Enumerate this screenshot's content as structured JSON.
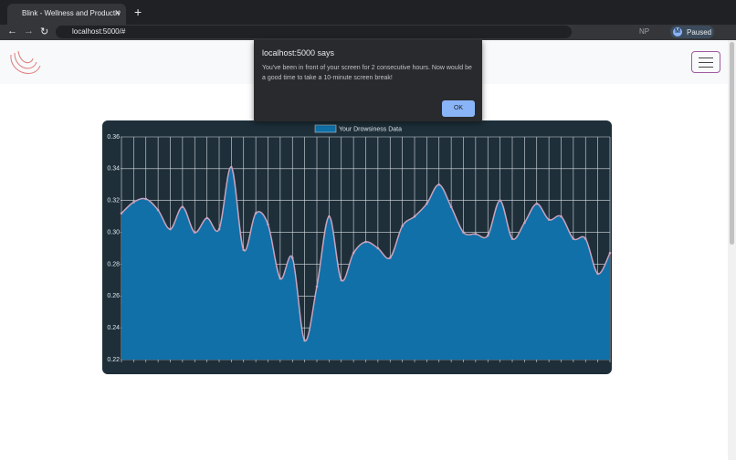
{
  "browser": {
    "tab_title": "Blink - Wellness and Productiv",
    "url": "localhost:5000/#",
    "profile_initial": "M",
    "profile_status": "Paused",
    "extension_label": "NP"
  },
  "dialog": {
    "title": "localhost:5000 says",
    "message": "You've been in front of your screen for 2 consecutive hours. Now would be a good time to take a 10-minute screen break!",
    "button": "OK"
  },
  "chart_data": {
    "type": "line",
    "categories": [
      null,
      null,
      null,
      null,
      null,
      null,
      null,
      null,
      null,
      null,
      null,
      null,
      null,
      null,
      null,
      null,
      null,
      null,
      null,
      null,
      null,
      null,
      null,
      null,
      null,
      null,
      null,
      null,
      null,
      null,
      null,
      null,
      null,
      null,
      null,
      null,
      null,
      null,
      null,
      null,
      null
    ],
    "series": [
      {
        "name": "Your Drowsiness Data",
        "color": "#1170a8",
        "line_color": "#c9a3bd",
        "values": [
          0.312,
          0.319,
          0.321,
          0.314,
          0.302,
          0.316,
          0.3,
          0.309,
          0.302,
          0.341,
          0.289,
          0.312,
          0.305,
          0.271,
          0.284,
          0.232,
          0.266,
          0.31,
          0.27,
          0.287,
          0.294,
          0.29,
          0.284,
          0.304,
          0.31,
          0.318,
          0.33,
          0.316,
          0.3,
          0.299,
          0.298,
          0.32,
          0.296,
          0.306,
          0.318,
          0.308,
          0.31,
          0.296,
          0.296,
          0.274,
          0.287
        ]
      }
    ],
    "ylim": [
      0.22,
      0.36
    ],
    "yticks": [
      0.22,
      0.24,
      0.26,
      0.28,
      {
        "value": 0.3,
        "label": "0.30"
      },
      0.32,
      0.34,
      0.36
    ],
    "fill": true,
    "grid": true,
    "legend": "top"
  }
}
